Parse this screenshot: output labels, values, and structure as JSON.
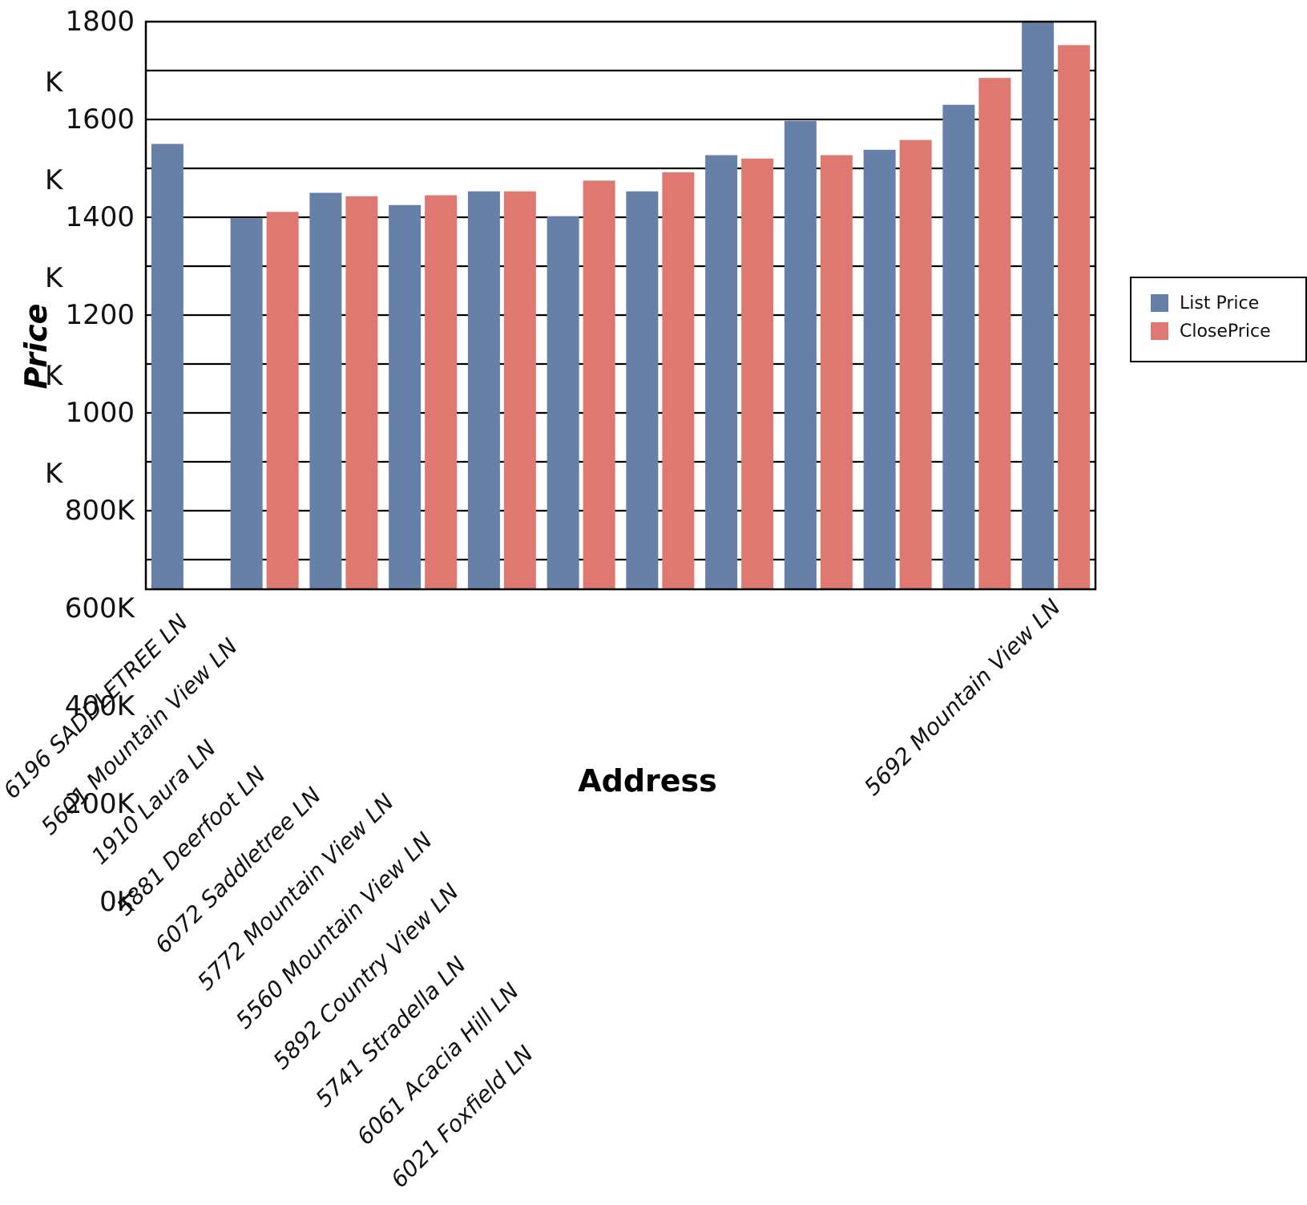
{
  "chart_data": {
    "type": "bar",
    "xlabel": "Address",
    "ylabel": "Price",
    "ylim": [
      0,
      1800
    ],
    "yticks": [
      {
        "value": 0,
        "label": "0K"
      },
      {
        "value": 200,
        "label": "200K"
      },
      {
        "value": 400,
        "label": "400K"
      },
      {
        "value": 600,
        "label": "600K"
      },
      {
        "value": 800,
        "label": "800K"
      },
      {
        "value": 1000,
        "label": "1000 K"
      },
      {
        "value": 1200,
        "label": "1200 K"
      },
      {
        "value": 1400,
        "label": "1400 K"
      },
      {
        "value": 1600,
        "label": "1600 K"
      },
      {
        "value": 1800,
        "label": "1800 K"
      }
    ],
    "grid": true,
    "legend_position": "right",
    "categories": [
      "6196 SADDLETREE LN",
      "5601 Mountain View LN",
      "1910 Laura LN",
      "5881 Deerfoot LN",
      "6072 Saddletree LN",
      "5772 Mountain View LN",
      "5560 Mountain View LN",
      "5892 Country View LN",
      "5741 Stradella LN",
      "6061 Acacia Hill LN",
      "6021 Foxfield LN",
      "5692 Mountain View LN"
    ],
    "series": [
      {
        "name": "List Price",
        "color": "#6680a8",
        "values": [
          1550,
          1398,
          1450,
          1425,
          1453,
          1402,
          1453,
          1527,
          1597,
          1538,
          1630,
          1800
        ]
      },
      {
        "name": "ClosePrice",
        "color": "#e07872",
        "values": [
          null,
          1411,
          1443,
          1445,
          1453,
          1475,
          1492,
          1520,
          1527,
          1558,
          1685,
          1752
        ]
      }
    ]
  }
}
